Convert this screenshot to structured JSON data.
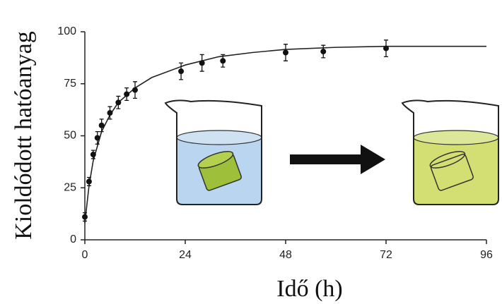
{
  "chart_data": {
    "type": "scatter",
    "x_label": "Idő (h)",
    "y_label": "Kioldódott hatóanyag",
    "x": [
      0,
      1,
      2,
      3,
      4,
      6,
      8,
      10,
      12,
      23,
      28,
      33,
      48,
      57,
      72
    ],
    "values": [
      11,
      28,
      41,
      49,
      55,
      61,
      66,
      70,
      72,
      81,
      85,
      86,
      90,
      90.5,
      92
    ],
    "errors": [
      2,
      2,
      2,
      3,
      3,
      3,
      3,
      3,
      4,
      4,
      4,
      3,
      4,
      3,
      4
    ],
    "color": "#111111",
    "fit": {
      "x": [
        0,
        1,
        2,
        4,
        6,
        8,
        12,
        16,
        24,
        32,
        40,
        48,
        60,
        72,
        84,
        96
      ],
      "values": [
        8,
        26,
        38,
        52,
        60,
        66,
        73,
        78,
        84,
        88,
        90,
        91.5,
        92.5,
        93,
        93,
        93
      ]
    },
    "xlim": [
      0,
      96
    ],
    "ylim": [
      0,
      100
    ],
    "xticks": [
      0,
      24,
      48,
      72,
      96
    ],
    "yticks": [
      0,
      25,
      50,
      75,
      100
    ]
  }
}
